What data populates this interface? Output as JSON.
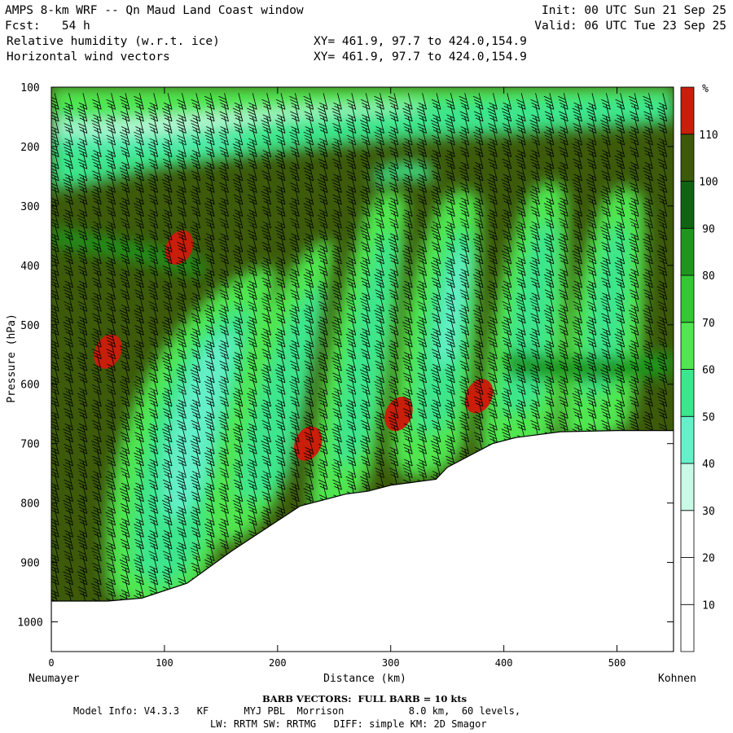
{
  "header": {
    "title": "AMPS 8-km WRF -- Qn Maud Land Coast window",
    "init": "Init: 00 UTC Sun 21 Sep 25",
    "fcst": "Fcst:   54 h",
    "valid": "Valid: 06 UTC Tue 23 Sep 25",
    "field1": "Relative humidity (w.r.t. ice)",
    "field2": "Horizontal wind vectors",
    "xy1": "XY= 461.9, 97.7 to 424.0,154.9",
    "xy2": "XY= 461.9, 97.7 to 424.0,154.9"
  },
  "chart_data": {
    "type": "heatmap",
    "xlabel": "Distance (km)",
    "ylabel": "Pressure (hPa)",
    "xlim": [
      0,
      550
    ],
    "ylim": [
      1050,
      100
    ],
    "x_ticks": [
      0,
      100,
      200,
      300,
      400,
      500
    ],
    "y_ticks": [
      100,
      200,
      300,
      400,
      500,
      600,
      700,
      800,
      900,
      1000
    ],
    "left_endpoint_label": "Neumayer",
    "right_endpoint_label": "Kohnen",
    "colorbar": {
      "unit": "%",
      "levels": [
        10,
        20,
        30,
        40,
        50,
        60,
        70,
        80,
        90,
        100,
        110
      ],
      "colors": [
        "#ffffff",
        "#ffffff",
        "#ffffff",
        "#c8fae6",
        "#64f0c8",
        "#3ce68c",
        "#50e650",
        "#32c832",
        "#1e961e",
        "#0f6414",
        "#3c5a0a",
        "#c81e0a"
      ]
    },
    "terrain_pressure": [
      [
        0,
        965
      ],
      [
        50,
        965
      ],
      [
        80,
        960
      ],
      [
        120,
        935
      ],
      [
        160,
        880
      ],
      [
        200,
        830
      ],
      [
        220,
        805
      ],
      [
        240,
        795
      ],
      [
        260,
        785
      ],
      [
        280,
        780
      ],
      [
        300,
        770
      ],
      [
        320,
        765
      ],
      [
        340,
        760
      ],
      [
        350,
        740
      ],
      [
        370,
        720
      ],
      [
        390,
        700
      ],
      [
        410,
        690
      ],
      [
        450,
        680
      ],
      [
        500,
        678
      ],
      [
        550,
        678
      ]
    ],
    "humid_patches_over_110": [
      {
        "x": 113,
        "p": 370
      },
      {
        "x": 50,
        "p": 545
      },
      {
        "x": 227,
        "p": 700
      },
      {
        "x": 307,
        "p": 650
      },
      {
        "x": 378,
        "p": 620
      }
    ]
  },
  "footer": {
    "barb_note": "BARB VECTORS:  FULL BARB = 10 kts",
    "line1": "Model Info: V4.3.3   KF      MYJ PBL  Morrison           8.0 km,  60 levels,",
    "line2": "LW: RRTM SW: RRTMG   DIFF: simple KM: 2D Smagor"
  },
  "colors": {
    "land": "#ffffff",
    "axis": "#000000"
  }
}
